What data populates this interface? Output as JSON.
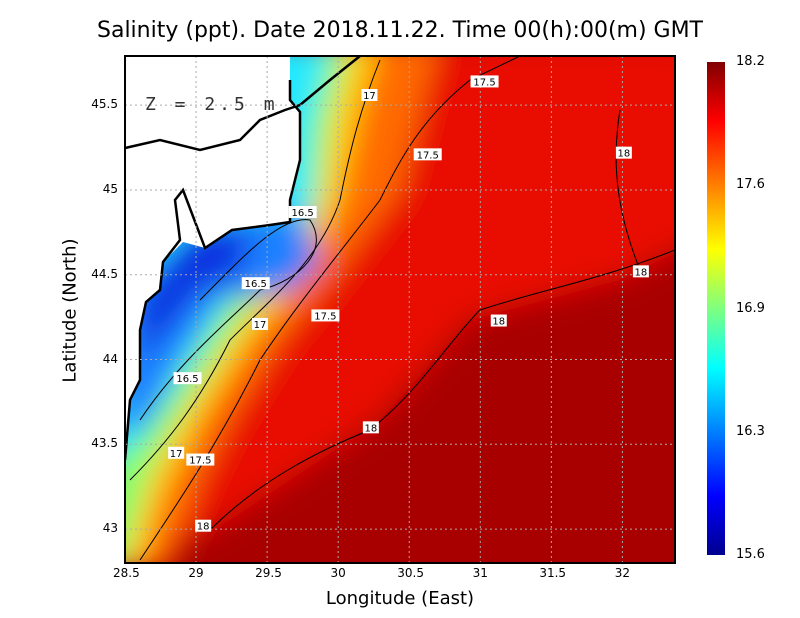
{
  "chart_data": {
    "type": "heatmap",
    "title": "Salinity (ppt). Date 2018.11.22. Time 00(h):00(m) GMT",
    "xlabel": "Longitude (East)",
    "ylabel": "Latitude (North)",
    "annotation": "Z = 2.5 m",
    "xlim": [
      28.5,
      32.37
    ],
    "ylim": [
      42.8,
      45.79
    ],
    "xticks": [
      "28.5",
      "29",
      "29.5",
      "30",
      "30.5",
      "31",
      "31.5",
      "32"
    ],
    "xtick_values": [
      28.5,
      29,
      29.5,
      30,
      30.5,
      31,
      31.5,
      32
    ],
    "yticks": [
      "43",
      "43.5",
      "44",
      "44.5",
      "45",
      "45.5"
    ],
    "ytick_values": [
      43,
      43.5,
      44,
      44.5,
      45,
      45.5
    ],
    "grid": true,
    "colorbar": {
      "labels": [
        "18.2",
        "17.6",
        "16.9",
        "16.3",
        "15.6"
      ],
      "min": 15.6,
      "max": 18.2,
      "colormap": "jet",
      "placement": "right"
    },
    "contour_labels": [
      {
        "text": "17.5",
        "lon": 31.03,
        "lat": 45.64
      },
      {
        "text": "17",
        "lon": 30.22,
        "lat": 45.56
      },
      {
        "text": "17.5",
        "lon": 30.63,
        "lat": 45.21
      },
      {
        "text": "18",
        "lon": 32.01,
        "lat": 45.22
      },
      {
        "text": "16.5",
        "lon": 29.75,
        "lat": 44.87
      },
      {
        "text": "18",
        "lon": 32.13,
        "lat": 44.52
      },
      {
        "text": "16.5",
        "lon": 29.42,
        "lat": 44.45
      },
      {
        "text": "17.5",
        "lon": 29.91,
        "lat": 44.26
      },
      {
        "text": "18",
        "lon": 31.13,
        "lat": 44.23
      },
      {
        "text": "17",
        "lon": 29.45,
        "lat": 44.21
      },
      {
        "text": "16.5",
        "lon": 28.94,
        "lat": 43.89
      },
      {
        "text": "18",
        "lon": 30.23,
        "lat": 43.6
      },
      {
        "text": "17",
        "lon": 28.86,
        "lat": 43.45
      },
      {
        "text": "17.5",
        "lon": 29.03,
        "lat": 43.41
      },
      {
        "text": "18",
        "lon": 29.05,
        "lat": 43.02
      }
    ]
  }
}
